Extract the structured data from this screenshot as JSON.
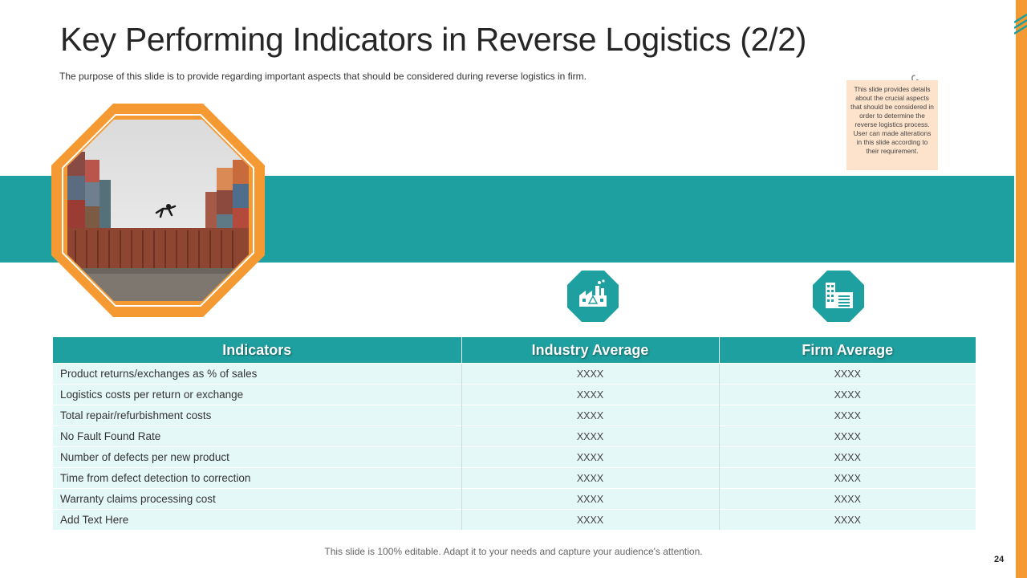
{
  "slide": {
    "title": "Key Performing Indicators in Reverse Logistics (2/2)",
    "subtitle": "The  purpose  of  this slide  is to provide  regarding  important  aspects that should  be  considered  during  reverse  logistics in firm.",
    "note": "This slide provides details about the crucial aspects that should be considered in order to determine the reverse logistics process. User can made alterations in this slide according to their requirement.",
    "footer": "This slide is 100% editable. Adapt it to your needs and capture your audience's attention.",
    "page_number": "24"
  },
  "icons": {
    "photo": "shipping-containers-photo",
    "industry": "factory-icon",
    "firm": "office-building-icon"
  },
  "colors": {
    "teal": "#1fa0a0",
    "orange": "#f59a33",
    "row_fill": "#e5f8f8",
    "note_fill": "#fde3cc"
  },
  "table": {
    "headers": [
      "Indicators",
      "Industry Average",
      "Firm Average"
    ],
    "rows": [
      {
        "indicator": "Product returns/exchanges as % of sales",
        "industry": "XXXX",
        "firm": "XXXX"
      },
      {
        "indicator": "Logistics costs per return or exchange",
        "industry": "XXXX",
        "firm": "XXXX"
      },
      {
        "indicator": "Total repair/refurbishment costs",
        "industry": "XXXX",
        "firm": "XXXX"
      },
      {
        "indicator": "No Fault Found Rate",
        "industry": "XXXX",
        "firm": "XXXX"
      },
      {
        "indicator": "Number of defects per new product",
        "industry": "XXXX",
        "firm": "XXXX"
      },
      {
        "indicator": "Time from defect detection to correction",
        "industry": "XXXX",
        "firm": "XXXX"
      },
      {
        "indicator": "Warranty claims processing cost",
        "industry": "XXXX",
        "firm": "XXXX"
      },
      {
        "indicator": "Add Text Here",
        "industry": "XXXX",
        "firm": "XXXX"
      }
    ]
  }
}
